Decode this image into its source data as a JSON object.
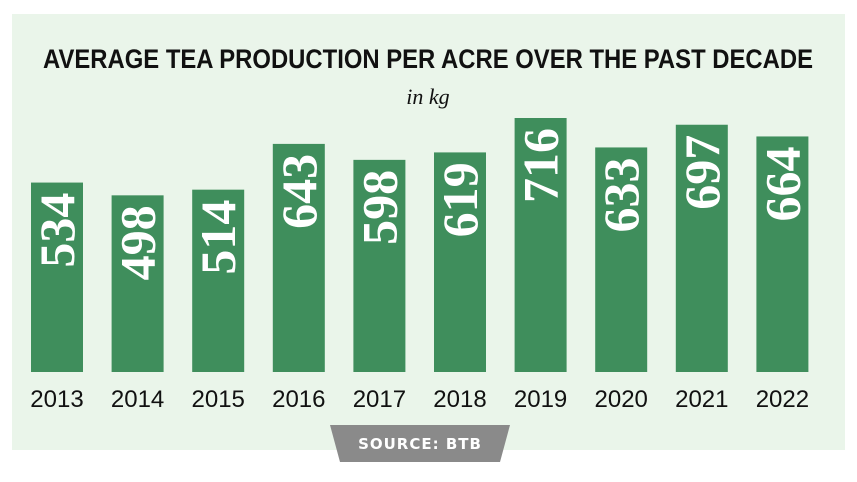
{
  "chart_data": {
    "type": "bar",
    "title": "AVERAGE TEA PRODUCTION PER ACRE OVER THE PAST DECADE",
    "subtitle": "in kg",
    "categories": [
      "2013",
      "2014",
      "2015",
      "2016",
      "2017",
      "2018",
      "2019",
      "2020",
      "2021",
      "2022"
    ],
    "values": [
      534,
      498,
      514,
      643,
      598,
      619,
      716,
      633,
      697,
      664
    ],
    "color": "#3f8e5c",
    "source": "SOURCE: BTB"
  }
}
